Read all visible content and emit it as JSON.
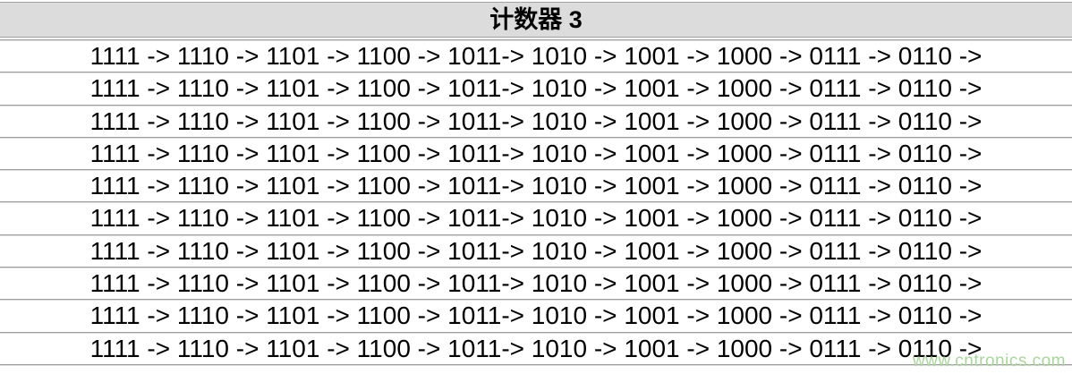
{
  "header": {
    "title": "计数器 3"
  },
  "rows": [
    "1111 -> 1110 -> 1101 -> 1100 -> 1011-> 1010 -> 1001 -> 1000 -> 0111 -> 0110 ->",
    "1111 -> 1110 -> 1101 -> 1100 -> 1011-> 1010 -> 1001 -> 1000 -> 0111 -> 0110 ->",
    "1111 -> 1110 -> 1101 -> 1100 -> 1011-> 1010 -> 1001 -> 1000 -> 0111 -> 0110 ->",
    "1111 -> 1110 -> 1101 -> 1100 -> 1011-> 1010 -> 1001 -> 1000 -> 0111 -> 0110 ->",
    "1111 -> 1110 -> 1101 -> 1100 -> 1011-> 1010 -> 1001 -> 1000 -> 0111 -> 0110 ->",
    "1111 -> 1110 -> 1101 -> 1100 -> 1011-> 1010 -> 1001 -> 1000 -> 0111 -> 0110 ->",
    "1111 -> 1110 -> 1101 -> 1100 -> 1011-> 1010 -> 1001 -> 1000 -> 0111 -> 0110 ->",
    "1111 -> 1110 -> 1101 -> 1100 -> 1011-> 1010 -> 1001 -> 1000 -> 0111 -> 0110 ->",
    "1111 -> 1110 -> 1101 -> 1100 -> 1011-> 1010 -> 1001 -> 1000 -> 0111 -> 0110 ->",
    "1111 -> 1110 -> 1101 -> 1100 -> 1011-> 1010 -> 1001 -> 1000 -> 0111 -> 0110 ->"
  ],
  "watermark": {
    "text": "www.cntronics.com"
  },
  "colors": {
    "header_bg": "#dcdcdc",
    "separator_dark": "#9e9e9e",
    "separator_light": "#dddddd",
    "watermark_green": "#a9d69b",
    "text": "#000000"
  }
}
